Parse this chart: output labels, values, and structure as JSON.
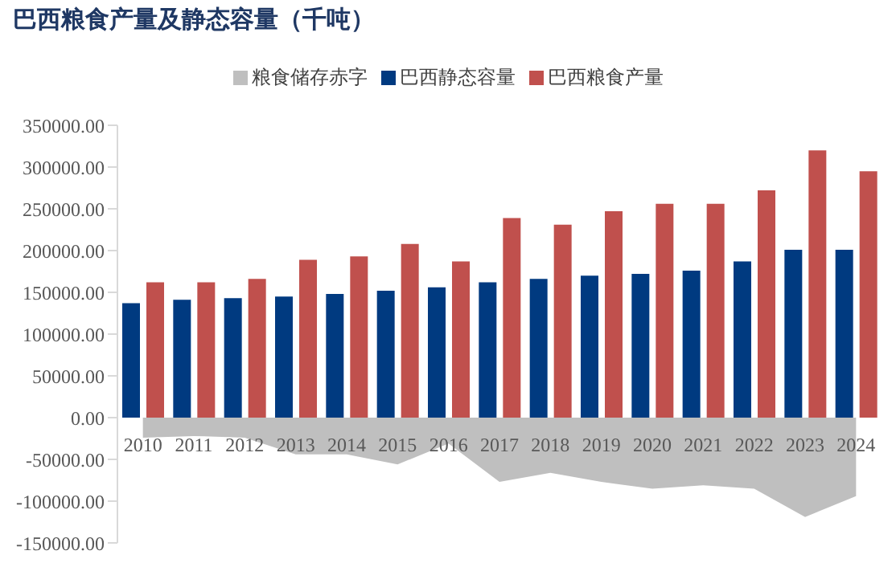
{
  "chart_data": {
    "type": "bar",
    "title": "巴西粮食产量及静态容量（千吨）",
    "categories": [
      "2010",
      "2011",
      "2012",
      "2013",
      "2014",
      "2015",
      "2016",
      "2017",
      "2018",
      "2019",
      "2020",
      "2021",
      "2022",
      "2023",
      "2024"
    ],
    "series": [
      {
        "name": "粮食储存赤字",
        "type": "area",
        "color": "#bfbfbf",
        "values": [
          -24000,
          -22000,
          -24000,
          -44000,
          -44000,
          -56000,
          -31000,
          -77000,
          -66000,
          -77000,
          -85000,
          -81000,
          -85000,
          -119000,
          -94000
        ]
      },
      {
        "name": "巴西静态容量",
        "color": "#003a80",
        "values": [
          137000,
          141000,
          143000,
          145000,
          148000,
          152000,
          156000,
          162000,
          166000,
          170000,
          172000,
          176000,
          187000,
          201000,
          201000
        ]
      },
      {
        "name": "巴西粮食产量",
        "color": "#c0504d",
        "values": [
          162000,
          162000,
          166000,
          189000,
          193000,
          208000,
          187000,
          239000,
          231000,
          247000,
          256000,
          256000,
          272000,
          320000,
          295000
        ]
      }
    ],
    "ylim": [
      -150000,
      350000
    ],
    "yticks": [
      {
        "value": -150000,
        "label": "-150000.00"
      },
      {
        "value": -100000,
        "label": "-100000.00"
      },
      {
        "value": -50000,
        "label": "-50000.00"
      },
      {
        "value": 0,
        "label": "0.00"
      },
      {
        "value": 50000,
        "label": "50000.00"
      },
      {
        "value": 100000,
        "label": "100000.00"
      },
      {
        "value": 150000,
        "label": "150000.00"
      },
      {
        "value": 200000,
        "label": "200000.00"
      },
      {
        "value": 250000,
        "label": "250000.00"
      },
      {
        "value": 300000,
        "label": "300000.00"
      },
      {
        "value": 350000,
        "label": "350000.00"
      }
    ],
    "grid": false,
    "legend": "top"
  }
}
